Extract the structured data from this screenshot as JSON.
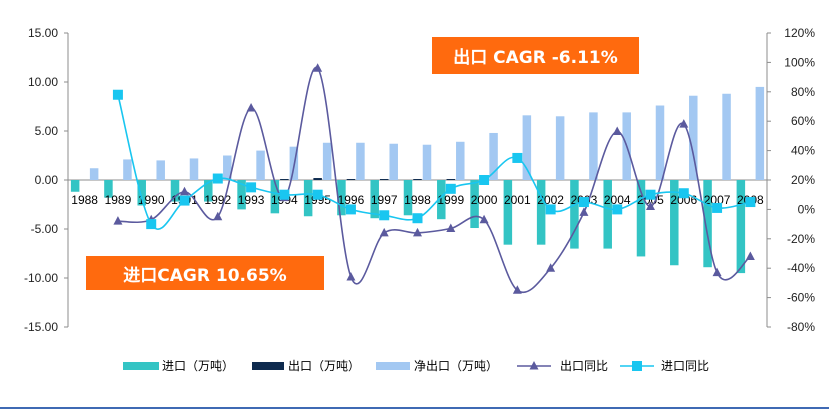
{
  "chart_data": {
    "type": "bar",
    "categories": [
      "1988",
      "1989",
      "1990",
      "1991",
      "1992",
      "1993",
      "1994",
      "1995",
      "1996",
      "1997",
      "1998",
      "1999",
      "2000",
      "2001",
      "2002",
      "2003",
      "2004",
      "2005",
      "2006",
      "2007",
      "2008"
    ],
    "left_axis": {
      "ylim": [
        -15,
        15
      ],
      "ticks": [
        "15.00",
        "10.00",
        "5.00",
        "0.00",
        "-5.00",
        "-10.00",
        "-15.00"
      ],
      "tick_values": [
        15,
        10,
        5,
        0,
        -5,
        -10,
        -15
      ]
    },
    "right_axis": {
      "ylim": [
        -80,
        120
      ],
      "ticks": [
        "120%",
        "100%",
        "80%",
        "60%",
        "40%",
        "20%",
        "0%",
        "-20%",
        "-40%",
        "-60%",
        "-80%"
      ],
      "tick_values": [
        120,
        100,
        80,
        60,
        40,
        20,
        0,
        -20,
        -40,
        -60,
        -80
      ]
    },
    "series": [
      {
        "name": "进口（万吨）",
        "type": "bar",
        "axis": "left",
        "color": "#33c4c4",
        "values": [
          -1.2,
          -1.8,
          -2.6,
          -2.2,
          -2.2,
          -3.0,
          -3.4,
          -3.7,
          -3.6,
          -3.9,
          -3.6,
          -4.0,
          -4.9,
          -6.6,
          -6.6,
          -7.0,
          -7.0,
          -7.8,
          -8.7,
          -8.9,
          -9.5
        ]
      },
      {
        "name": "出口（万吨）",
        "type": "bar",
        "axis": "left",
        "color": "#0e2a4e",
        "values": [
          0.0,
          0.0,
          0.0,
          0.0,
          0.0,
          0.0,
          0.1,
          0.2,
          0.1,
          0.1,
          0.1,
          0.1,
          0.0,
          0.0,
          0.0,
          0.0,
          0.0,
          0.0,
          0.0,
          0.0,
          0.0
        ]
      },
      {
        "name": "净出口（万吨）",
        "type": "bar",
        "axis": "left",
        "color": "#a3c8f2",
        "values": [
          1.2,
          2.1,
          2.0,
          2.2,
          2.5,
          3.0,
          3.4,
          3.8,
          3.8,
          3.7,
          3.6,
          3.9,
          4.8,
          6.6,
          6.5,
          6.9,
          6.9,
          7.6,
          8.6,
          8.8,
          9.5
        ]
      },
      {
        "name": "出口同比",
        "type": "line",
        "axis": "right",
        "color": "#5b5a9e",
        "marker": "triangle",
        "values": [
          null,
          -8,
          -7,
          12,
          -5,
          69,
          8,
          96,
          -46,
          -16,
          -16,
          -13,
          -7,
          -55,
          -40,
          -2,
          53,
          2,
          58,
          -43,
          -32
        ]
      },
      {
        "name": "进口同比",
        "type": "line",
        "axis": "right",
        "color": "#19c6f0",
        "marker": "square",
        "values": [
          null,
          78,
          -10,
          6,
          21,
          15,
          10,
          10,
          0,
          -4,
          -6,
          14,
          20,
          35,
          0,
          5,
          0,
          10,
          11,
          1,
          5
        ]
      }
    ]
  },
  "annotations": {
    "export_cagr": "出口 CAGR -6.11%",
    "import_cagr": "进口CAGR 10.65%"
  }
}
